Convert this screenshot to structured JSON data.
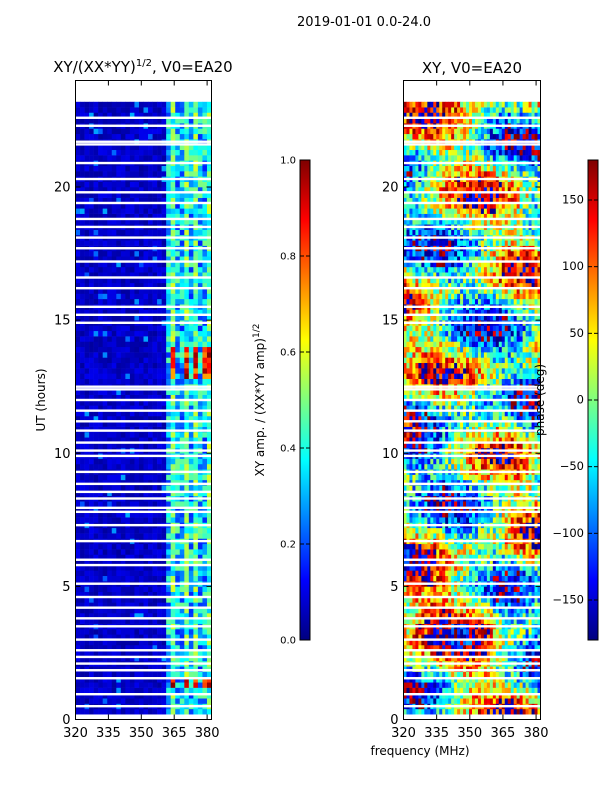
{
  "figure": {
    "suptitle": "2019-01-01 0.0-24.0",
    "xlabel": "frequency (MHz)",
    "ylabel": "UT (hours)"
  },
  "colors": {
    "jet": [
      "#00007f",
      "#0000ff",
      "#007fff",
      "#00ffff",
      "#7fff7f",
      "#ffff00",
      "#ff7f00",
      "#ff0000",
      "#7f0000"
    ],
    "gap": "#ffffff",
    "axes": "#000000"
  },
  "chart_data": [
    {
      "type": "heatmap",
      "panel": "amplitude",
      "title_prefix": "XY/(XX*YY)",
      "title_exp": "1/2",
      "title_suffix": ", V0=EA20",
      "xlim": [
        320,
        382
      ],
      "ylim": [
        0,
        24
      ],
      "xticks": [
        320,
        335,
        350,
        365,
        380
      ],
      "yticks": [
        0,
        5,
        10,
        15,
        20
      ],
      "data_range_ut": [
        0.2,
        23.1
      ],
      "band_start_mhz": 360,
      "bright_channels_mhz": [
        364,
        369,
        374,
        379
      ],
      "bright_ut_ranges": [
        [
          1.1,
          1.5
        ],
        [
          12.7,
          13.8
        ]
      ],
      "gap_ut": [
        0.5,
        0.95,
        1.55,
        1.85,
        2.1,
        2.35,
        2.6,
        3.0,
        3.5,
        3.8,
        4.2,
        4.6,
        5.1,
        5.8,
        6.0,
        6.7,
        7.3,
        7.8,
        7.95,
        8.3,
        8.55,
        8.85,
        9.3,
        9.9,
        10.1,
        10.4,
        10.85,
        11.2,
        11.6,
        12.0,
        12.4,
        12.5,
        14.9,
        15.2,
        15.5,
        16.2,
        16.6,
        17.2,
        17.7,
        18.1,
        18.5,
        18.8,
        19.4,
        19.8,
        20.3,
        20.9,
        21.6,
        21.7,
        22.3,
        22.6
      ],
      "colorbar": {
        "label_base": "XY amp. / (XX*YY amp)",
        "label_exp": "1/2",
        "range": [
          0.0,
          1.0
        ],
        "tick_values": [
          0.0,
          0.2,
          0.4,
          0.6,
          0.8,
          1.0
        ],
        "tick_labels": [
          "0.0",
          "0.2",
          "0.4",
          "0.6",
          "0.8",
          "1.0"
        ]
      }
    },
    {
      "type": "heatmap",
      "panel": "phase",
      "title": "XY, V0=EA20",
      "xlim": [
        320,
        382
      ],
      "ylim": [
        0,
        24
      ],
      "xticks": [
        320,
        335,
        350,
        365,
        380
      ],
      "yticks": [
        0,
        5,
        10,
        15,
        20
      ],
      "data_range_ut": [
        0.2,
        23.1
      ],
      "gap_ut": [
        0.5,
        0.95,
        1.55,
        1.85,
        2.1,
        2.35,
        2.6,
        3.0,
        3.5,
        3.8,
        4.2,
        4.6,
        5.1,
        5.8,
        6.0,
        6.7,
        7.3,
        7.8,
        7.95,
        8.3,
        8.55,
        8.85,
        9.3,
        9.9,
        10.1,
        10.4,
        10.85,
        11.2,
        11.6,
        12.0,
        12.4,
        12.5,
        14.9,
        15.2,
        15.5,
        16.2,
        16.6,
        17.2,
        17.7,
        18.1,
        18.5,
        18.8,
        19.4,
        19.8,
        20.3,
        20.9,
        21.6,
        21.7,
        22.3,
        22.6
      ],
      "colorbar": {
        "label": "phase (deg)",
        "range": [
          -180,
          180
        ],
        "tick_values": [
          150,
          100,
          50,
          0,
          -50,
          -100,
          -150
        ],
        "tick_labels": [
          "150",
          "100",
          "50",
          "0",
          "−50",
          "−100",
          "−150"
        ]
      }
    }
  ]
}
